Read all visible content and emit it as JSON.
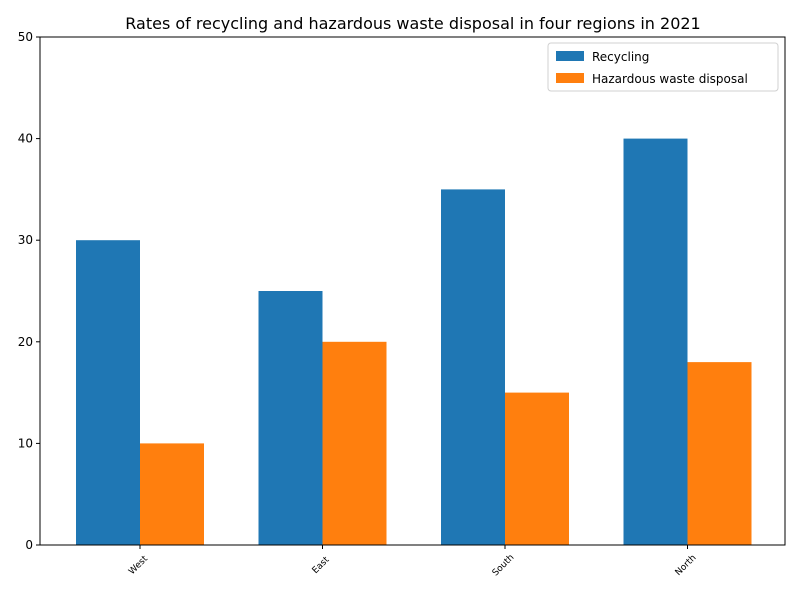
{
  "chart_data": {
    "type": "bar",
    "title": "Rates of recycling and hazardous waste disposal in four regions in 2021",
    "categories": [
      "West",
      "East",
      "South",
      "North"
    ],
    "series": [
      {
        "name": "Recycling",
        "color": "#1f77b4",
        "values": [
          30,
          25,
          35,
          40
        ]
      },
      {
        "name": "Hazardous waste disposal",
        "color": "#ff7f0e",
        "values": [
          10,
          20,
          15,
          18
        ]
      }
    ],
    "ylim": [
      0,
      50
    ],
    "yticks": [
      0,
      10,
      20,
      30,
      40,
      50
    ],
    "xlabel": "",
    "ylabel": "",
    "grid": false,
    "legend_position": "top-right"
  }
}
